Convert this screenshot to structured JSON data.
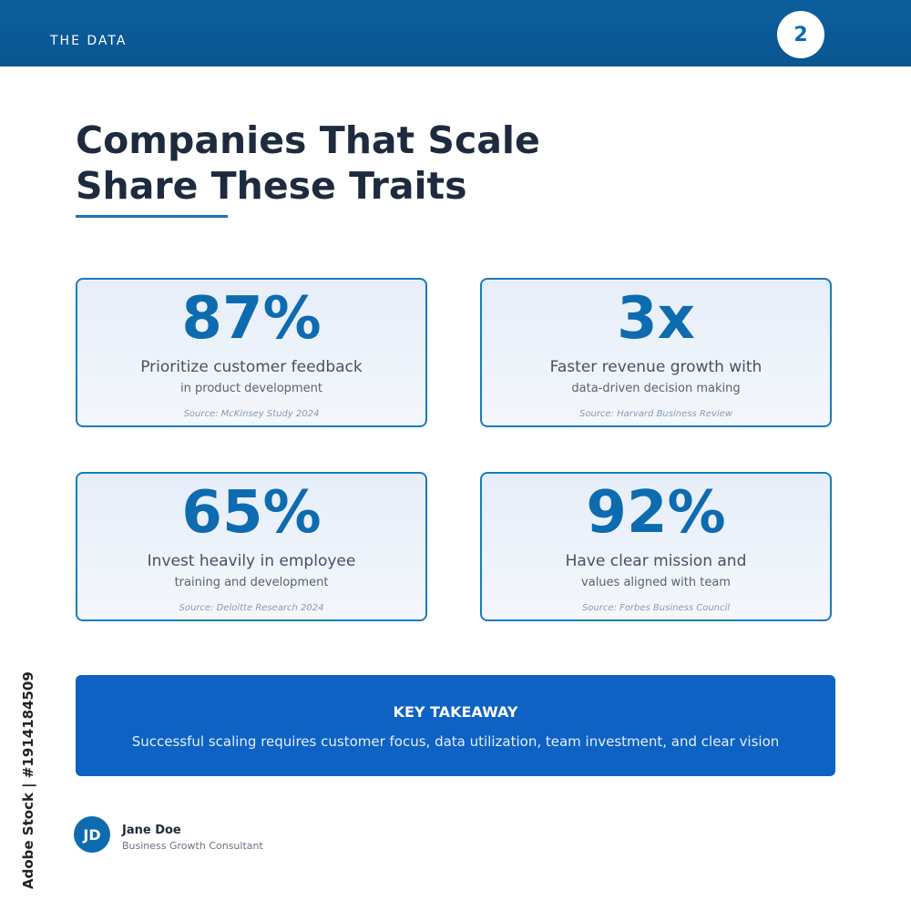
{
  "header": {
    "label": "THE DATA",
    "page_number": "2"
  },
  "title": {
    "lines": [
      "Companies That Scale",
      "Share These Traits"
    ]
  },
  "cards": [
    {
      "stat": "87%",
      "line1": "Prioritize customer feedback",
      "line2": "in product development",
      "source": "Source: McKinsey Study 2024"
    },
    {
      "stat": "3x",
      "line1": "Faster revenue growth with",
      "line2": "data-driven decision making",
      "source": "Source: Harvard Business Review"
    },
    {
      "stat": "65%",
      "line1": "Invest heavily in employee",
      "line2": "training and development",
      "source": "Source: Deloitte Research 2024"
    },
    {
      "stat": "92%",
      "line1": "Have clear mission and",
      "line2": "values aligned with team",
      "source": "Source: Forbes Business Council"
    }
  ],
  "takeaway": {
    "title": "KEY TAKEAWAY",
    "text": "Successful scaling requires customer focus, data utilization, team investment, and clear vision"
  },
  "author": {
    "initials": "JD",
    "name": "Jane Doe",
    "role": "Business Growth Consultant"
  },
  "watermark": "Adobe Stock | #1914184509"
}
